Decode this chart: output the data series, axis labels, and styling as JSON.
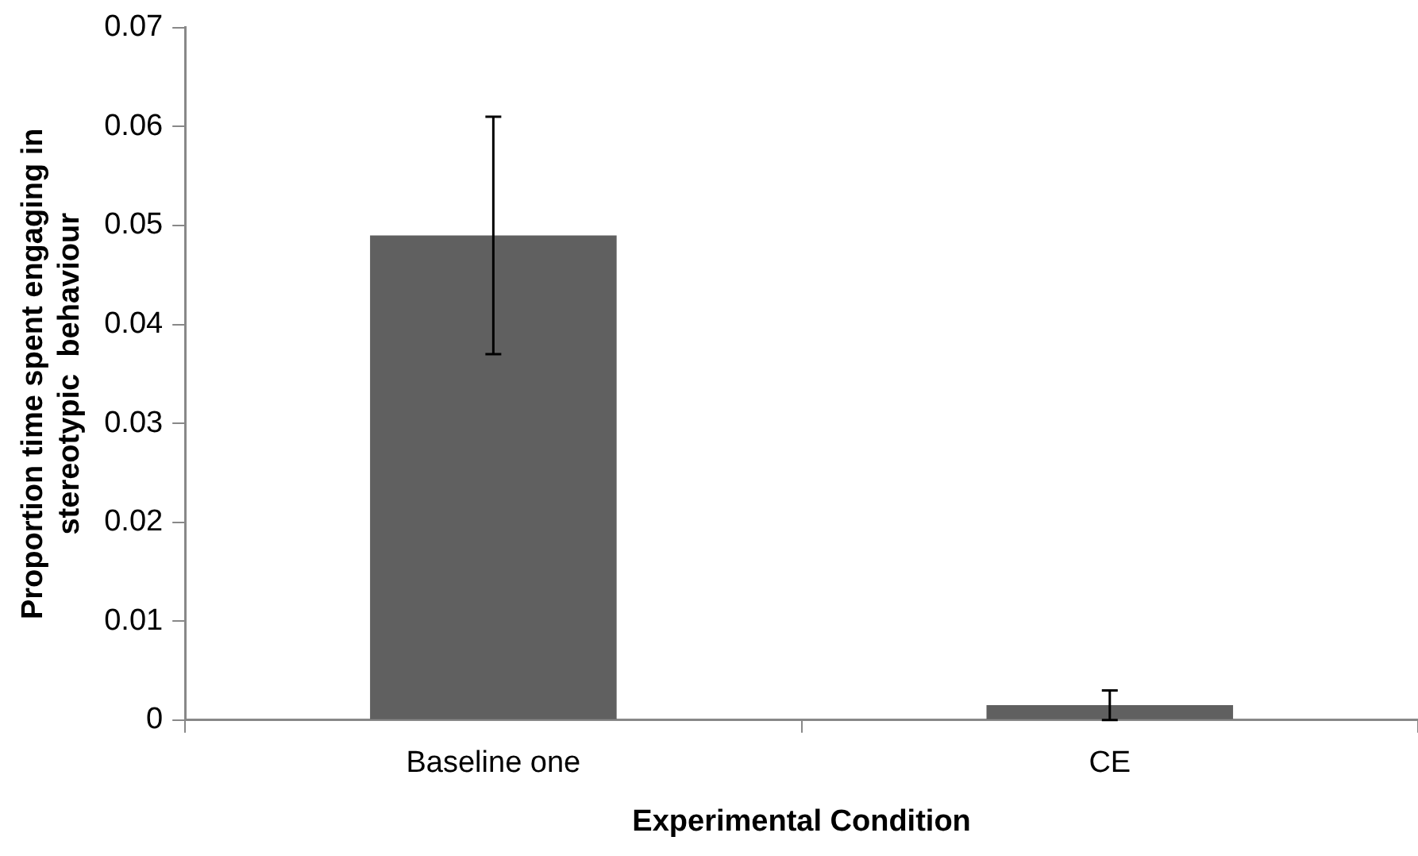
{
  "chart_data": {
    "type": "bar",
    "xlabel": "Experimental Condition",
    "ylabel": "Proportion time spent engaging in\nstereotypic  behaviour",
    "categories": [
      "Baseline one",
      "CE"
    ],
    "values": [
      0.049,
      0.0015
    ],
    "errors": [
      0.012,
      0.0015
    ],
    "color": "#606060",
    "ylim": [
      0,
      0.07
    ],
    "yticks": [
      0,
      0.01,
      0.02,
      0.03,
      0.04,
      0.05,
      0.06,
      0.07
    ],
    "grid": false,
    "legend": false
  }
}
